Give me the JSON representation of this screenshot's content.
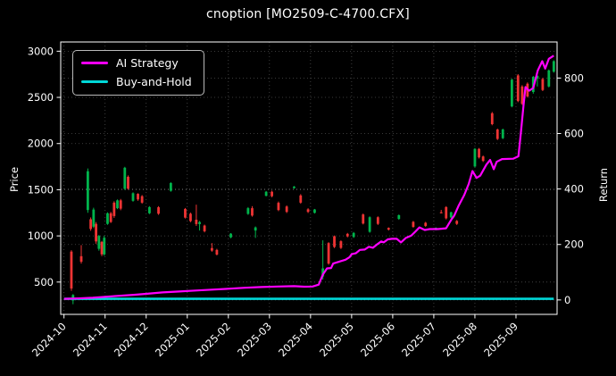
{
  "window": {
    "title": "cnoption [MO2509-C-4700.CFX]"
  },
  "colors": {
    "background": "#000000",
    "text": "#ffffff",
    "spine": "#ffffff",
    "grid": "#4d4d4d",
    "candle_up": "#00b44c",
    "candle_down": "#ef3434",
    "ai_strategy": "#ff00ff",
    "buy_and_hold": "#00d8d8"
  },
  "legend": {
    "items": [
      {
        "label": "AI Strategy",
        "color": "#ff00ff"
      },
      {
        "label": "Buy-and-Hold",
        "color": "#00d8d8"
      }
    ]
  },
  "chart_data": {
    "type": "candlestick",
    "title": "cnoption [MO2509-C-4700.CFX]",
    "grid": true,
    "legend_position": "upper left",
    "x_unit": "months since 2024-10-01 (decimal)",
    "x_ticks": {
      "positions": [
        0,
        1,
        2,
        3,
        4,
        5,
        6,
        7,
        8,
        9,
        10,
        11
      ],
      "labels": [
        "2024-10",
        "2024-11",
        "2024-12",
        "2025-01",
        "2025-02",
        "2025-03",
        "2025-04",
        "2025-05",
        "2025-06",
        "2025-07",
        "2025-08",
        "2025-09"
      ],
      "rotation": -45
    },
    "xlim": [
      -0.08,
      12.0
    ],
    "left_axis": {
      "label": "Price",
      "ticks": [
        500,
        1000,
        1500,
        2000,
        2500,
        3000
      ],
      "lim": [
        150,
        3100
      ]
    },
    "right_axis": {
      "label": "Return",
      "ticks": [
        0,
        200,
        400,
        600,
        800
      ],
      "lim": [
        -52,
        930
      ]
    },
    "candles_format": [
      "x_month",
      "open",
      "high",
      "low",
      "close"
    ],
    "candles": [
      [
        0.18,
        830,
        845,
        405,
        430
      ],
      [
        0.22,
        300,
        370,
        260,
        360
      ],
      [
        0.42,
        780,
        900,
        700,
        720
      ],
      [
        0.58,
        1280,
        1730,
        1250,
        1700
      ],
      [
        0.65,
        1180,
        1200,
        1055,
        1075
      ],
      [
        0.72,
        1100,
        1305,
        1085,
        1285
      ],
      [
        0.78,
        1130,
        1150,
        915,
        940
      ],
      [
        0.85,
        860,
        1010,
        840,
        1000
      ],
      [
        0.92,
        935,
        945,
        780,
        800
      ],
      [
        0.98,
        800,
        1000,
        785,
        980
      ],
      [
        1.06,
        1130,
        1255,
        1120,
        1245
      ],
      [
        1.14,
        1245,
        1260,
        1140,
        1150
      ],
      [
        1.22,
        1360,
        1375,
        1195,
        1215
      ],
      [
        1.3,
        1300,
        1395,
        1290,
        1385
      ],
      [
        1.38,
        1385,
        1400,
        1278,
        1295
      ],
      [
        1.48,
        1510,
        1748,
        1498,
        1738
      ],
      [
        1.56,
        1640,
        1655,
        1500,
        1512
      ],
      [
        1.68,
        1380,
        1472,
        1370,
        1462
      ],
      [
        1.8,
        1455,
        1462,
        1380,
        1395
      ],
      [
        1.9,
        1430,
        1442,
        1348,
        1360
      ],
      [
        2.08,
        1245,
        1322,
        1236,
        1312
      ],
      [
        2.3,
        1310,
        1322,
        1228,
        1240
      ],
      [
        2.6,
        1488,
        1582,
        1478,
        1572
      ],
      [
        2.95,
        1292,
        1302,
        1188,
        1198
      ],
      [
        3.08,
        1240,
        1252,
        1148,
        1160
      ],
      [
        3.22,
        1175,
        1338,
        1108,
        1128
      ],
      [
        3.3,
        1128,
        1162,
        1058,
        1150
      ],
      [
        3.42,
        1112,
        1122,
        1038,
        1050
      ],
      [
        3.6,
        868,
        922,
        828,
        840
      ],
      [
        3.72,
        848,
        860,
        788,
        798
      ],
      [
        4.06,
        984,
        1030,
        974,
        1024
      ],
      [
        4.48,
        1238,
        1312,
        1228,
        1300
      ],
      [
        4.58,
        1300,
        1322,
        1208,
        1220
      ],
      [
        4.66,
        1058,
        1102,
        978,
        1092
      ],
      [
        4.92,
        1434,
        1486,
        1428,
        1478
      ],
      [
        5.06,
        1478,
        1490,
        1418,
        1430
      ],
      [
        5.22,
        1358,
        1372,
        1268,
        1280
      ],
      [
        5.42,
        1318,
        1330,
        1248,
        1260
      ],
      [
        5.6,
        1518,
        1540,
        1510,
        1534
      ],
      [
        5.76,
        1438,
        1452,
        1348,
        1360
      ],
      [
        5.94,
        1288,
        1300,
        1248,
        1260
      ],
      [
        6.1,
        1250,
        1292,
        1242,
        1286
      ],
      [
        6.3,
        560,
        952,
        528,
        648
      ],
      [
        6.44,
        922,
        932,
        688,
        700
      ],
      [
        6.58,
        996,
        1004,
        868,
        880
      ],
      [
        6.74,
        942,
        952,
        858,
        870
      ],
      [
        6.9,
        1022,
        1032,
        984,
        994
      ],
      [
        7.05,
        988,
        1042,
        978,
        1032
      ],
      [
        7.28,
        1232,
        1242,
        1124,
        1134
      ],
      [
        7.44,
        1044,
        1212,
        1034,
        1202
      ],
      [
        7.64,
        1202,
        1212,
        1118,
        1130
      ],
      [
        7.9,
        1086,
        1092,
        1058,
        1068
      ],
      [
        8.15,
        1184,
        1232,
        1174,
        1224
      ],
      [
        8.5,
        1152,
        1162,
        1088,
        1098
      ],
      [
        8.8,
        1142,
        1152,
        1098,
        1108
      ],
      [
        9.05,
        1085,
        1092,
        1060,
        1088
      ],
      [
        9.18,
        1256,
        1282,
        1246,
        1252
      ],
      [
        9.3,
        1312,
        1322,
        1178,
        1190
      ],
      [
        9.42,
        1200,
        1262,
        1190,
        1256
      ],
      [
        9.56,
        1162,
        1172,
        1118,
        1130
      ],
      [
        10.0,
        1752,
        1952,
        1742,
        1942
      ],
      [
        10.1,
        1942,
        1952,
        1838,
        1850
      ],
      [
        10.2,
        1860,
        1870,
        1800,
        1812
      ],
      [
        10.42,
        2328,
        2342,
        2198,
        2210
      ],
      [
        10.55,
        2152,
        2162,
        2038,
        2050
      ],
      [
        10.68,
        2058,
        2162,
        2048,
        2152
      ],
      [
        10.9,
        2402,
        2702,
        2392,
        2692
      ],
      [
        11.05,
        2738,
        2752,
        2448,
        2460
      ],
      [
        11.15,
        2618,
        2632,
        2418,
        2430
      ],
      [
        11.28,
        2648,
        2662,
        2498,
        2510
      ],
      [
        11.42,
        2558,
        2732,
        2540,
        2722
      ],
      [
        11.52,
        2702,
        2742,
        2618,
        2732
      ],
      [
        11.65,
        2698,
        2712,
        2568,
        2580
      ],
      [
        11.8,
        2618,
        2802,
        2608,
        2792
      ],
      [
        11.92,
        2778,
        2902,
        2768,
        2892
      ]
    ],
    "series": [
      {
        "name": "AI Strategy",
        "color": "#ff00ff",
        "axis": "left",
        "points": [
          [
            0,
            318
          ],
          [
            0.3,
            322
          ],
          [
            0.7,
            330
          ],
          [
            1.0,
            340
          ],
          [
            1.3,
            350
          ],
          [
            1.7,
            362
          ],
          [
            2.0,
            372
          ],
          [
            2.4,
            388
          ],
          [
            2.8,
            398
          ],
          [
            3.2,
            408
          ],
          [
            3.6,
            418
          ],
          [
            4.0,
            428
          ],
          [
            4.4,
            438
          ],
          [
            4.8,
            446
          ],
          [
            5.2,
            452
          ],
          [
            5.6,
            456
          ],
          [
            5.85,
            450
          ],
          [
            6.05,
            452
          ],
          [
            6.2,
            472
          ],
          [
            6.3,
            580
          ],
          [
            6.4,
            648
          ],
          [
            6.5,
            652
          ],
          [
            6.55,
            700
          ],
          [
            6.7,
            722
          ],
          [
            6.85,
            742
          ],
          [
            6.95,
            770
          ],
          [
            7.0,
            802
          ],
          [
            7.1,
            812
          ],
          [
            7.2,
            848
          ],
          [
            7.32,
            852
          ],
          [
            7.42,
            882
          ],
          [
            7.52,
            872
          ],
          [
            7.62,
            908
          ],
          [
            7.72,
            940
          ],
          [
            7.78,
            930
          ],
          [
            7.88,
            962
          ],
          [
            7.98,
            968
          ],
          [
            8.1,
            968
          ],
          [
            8.2,
            930
          ],
          [
            8.32,
            978
          ],
          [
            8.45,
            1002
          ],
          [
            8.55,
            1046
          ],
          [
            8.65,
            1092
          ],
          [
            8.78,
            1064
          ],
          [
            8.9,
            1074
          ],
          [
            9.1,
            1074
          ],
          [
            9.3,
            1082
          ],
          [
            9.42,
            1172
          ],
          [
            9.5,
            1222
          ],
          [
            9.6,
            1322
          ],
          [
            9.74,
            1442
          ],
          [
            9.85,
            1562
          ],
          [
            9.94,
            1702
          ],
          [
            10.04,
            1628
          ],
          [
            10.13,
            1652
          ],
          [
            10.28,
            1772
          ],
          [
            10.37,
            1822
          ],
          [
            10.46,
            1722
          ],
          [
            10.53,
            1802
          ],
          [
            10.66,
            1832
          ],
          [
            10.93,
            1836
          ],
          [
            11.06,
            1862
          ],
          [
            11.12,
            2122
          ],
          [
            11.18,
            2402
          ],
          [
            11.23,
            2612
          ],
          [
            11.32,
            2572
          ],
          [
            11.42,
            2602
          ],
          [
            11.53,
            2792
          ],
          [
            11.64,
            2892
          ],
          [
            11.71,
            2812
          ],
          [
            11.8,
            2918
          ],
          [
            11.92,
            2952
          ]
        ]
      },
      {
        "name": "Buy-and-Hold",
        "color": "#00d8d8",
        "axis": "left",
        "points": [
          [
            0,
            318
          ],
          [
            11.92,
            318
          ]
        ]
      }
    ]
  }
}
